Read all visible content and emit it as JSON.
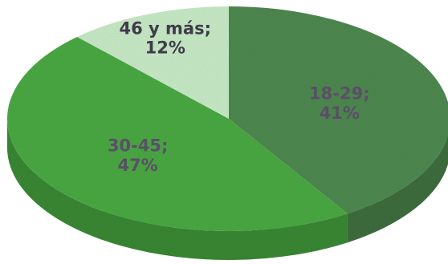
{
  "chart_data": {
    "type": "pie",
    "three_d": true,
    "legend": "none",
    "slices": [
      {
        "category": "18-29",
        "value": 41,
        "label": "18-29;",
        "value_label": "41%",
        "color": "#4f8a51",
        "side_color": "#3f6e40",
        "label_color": "#5d4d6a"
      },
      {
        "category": "30-45",
        "value": 47,
        "label": "30-45;",
        "value_label": "47%",
        "color": "#4caa45",
        "side_color": "#3a8935",
        "label_color": "#5d4d6a"
      },
      {
        "category": "46 y más",
        "value": 12,
        "label": "46 y más;",
        "value_label": "12%",
        "color": "#c9ecc8",
        "side_color": "#a5cfa4",
        "label_color": "#403a4a"
      }
    ]
  }
}
